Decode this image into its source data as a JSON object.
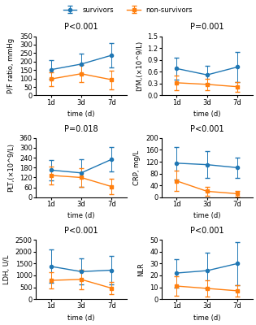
{
  "chart_data": [
    {
      "type": "line",
      "title": "P<0.001",
      "ylabel": "P/F ratio, mmHg",
      "xlabel": "time (d)",
      "categories": [
        "1d",
        "3d",
        "7d"
      ],
      "ylim": [
        0,
        350
      ],
      "yticks": [
        0,
        50,
        100,
        150,
        200,
        250,
        300,
        350
      ],
      "legend": "upper center",
      "series": [
        {
          "name": "survivors",
          "marker": "circle",
          "values": [
            152,
            185,
            237
          ],
          "errors": [
            55,
            60,
            70
          ]
        },
        {
          "name": "non-survivors",
          "marker": "square",
          "values": [
            97,
            128,
            93
          ],
          "errors": [
            40,
            50,
            55
          ]
        }
      ]
    },
    {
      "type": "line",
      "title": "P=0.001",
      "ylabel": "LYM,(×10^9/L)",
      "xlabel": "time (d)",
      "categories": [
        "1d",
        "3d",
        "7d"
      ],
      "ylim": [
        0,
        1.5
      ],
      "yticks": [
        {
          "value": 0,
          "label": "0.0"
        },
        0.3,
        0.6,
        0.9,
        1.2,
        1.5
      ],
      "series": [
        {
          "name": "survivors",
          "marker": "circle",
          "values": [
            0.68,
            0.52,
            0.72
          ],
          "errors": [
            0.28,
            0.22,
            0.38
          ]
        },
        {
          "name": "non-survivors",
          "marker": "square",
          "values": [
            0.32,
            0.28,
            0.22
          ],
          "errors": [
            0.18,
            0.15,
            0.12
          ]
        }
      ]
    },
    {
      "type": "line",
      "title": "P=0.018",
      "ylabel": "PLT,(×10^9/L)",
      "xlabel": "time (d)",
      "categories": [
        "1d",
        "3d",
        "7d"
      ],
      "ylim": [
        0,
        360
      ],
      "yticks": [
        0,
        60,
        120,
        180,
        240,
        300,
        360
      ],
      "series": [
        {
          "name": "survivors",
          "marker": "circle",
          "values": [
            165,
            148,
            230
          ],
          "errors": [
            60,
            85,
            75
          ]
        },
        {
          "name": "non-survivors",
          "marker": "square",
          "values": [
            133,
            120,
            65
          ],
          "errors": [
            55,
            55,
            45
          ]
        }
      ]
    },
    {
      "type": "line",
      "title": "P<0.001",
      "ylabel": "CRP, mg/L",
      "xlabel": "time (d)",
      "categories": [
        "1d",
        "3d",
        "7d"
      ],
      "ylim": [
        0,
        200
      ],
      "yticks": [
        0,
        40,
        80,
        120,
        160,
        200
      ],
      "series": [
        {
          "name": "survivors",
          "marker": "circle",
          "values": [
            115,
            110,
            100
          ],
          "errors": [
            55,
            45,
            35
          ]
        },
        {
          "name": "non-survivors",
          "marker": "square",
          "values": [
            55,
            20,
            12
          ],
          "errors": [
            35,
            15,
            10
          ]
        }
      ]
    },
    {
      "type": "line",
      "title": "P<0.001",
      "ylabel": "LDH, U/L",
      "xlabel": "time (d)",
      "categories": [
        "1d",
        "3d",
        "7d"
      ],
      "ylim": [
        0,
        2500
      ],
      "yticks": [
        0,
        500,
        1000,
        1500,
        2000,
        2500
      ],
      "series": [
        {
          "name": "survivors",
          "marker": "circle",
          "values": [
            1380,
            1160,
            1220
          ],
          "errors": [
            700,
            550,
            600
          ]
        },
        {
          "name": "non-survivors",
          "marker": "square",
          "values": [
            790,
            830,
            460
          ],
          "errors": [
            350,
            400,
            250
          ]
        }
      ]
    },
    {
      "type": "line",
      "title": "P<0.001",
      "ylabel": "NLR",
      "xlabel": "time (d)",
      "categories": [
        "1d",
        "3d",
        "7d"
      ],
      "ylim": [
        0,
        50
      ],
      "yticks": [
        0,
        10,
        20,
        30,
        40,
        50
      ],
      "series": [
        {
          "name": "survivors",
          "marker": "circle",
          "values": [
            22,
            24,
            30
          ],
          "errors": [
            12,
            15,
            18
          ]
        },
        {
          "name": "non-survivors",
          "marker": "square",
          "values": [
            11,
            9,
            7
          ],
          "errors": [
            8,
            7,
            5
          ]
        }
      ]
    }
  ]
}
